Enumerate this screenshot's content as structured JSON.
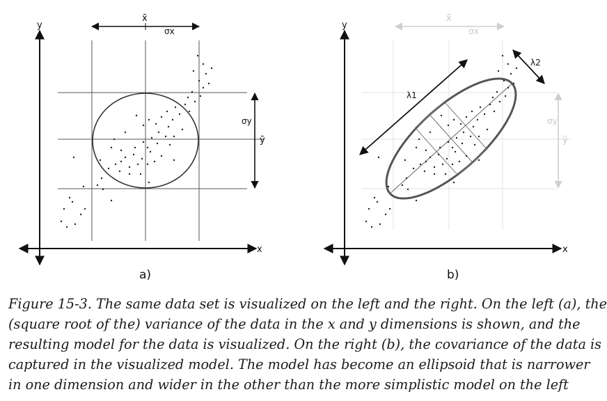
{
  "figure": {
    "panel_a": {
      "label": "a)",
      "x_axis": "x",
      "y_axis": "y",
      "x_mean": "x̄",
      "y_mean": "ȳ",
      "sigma_x": "σx",
      "sigma_y": "σy"
    },
    "panel_b": {
      "label": "b)",
      "x_axis": "x",
      "y_axis": "y",
      "x_mean": "x̄",
      "y_mean": "ȳ",
      "sigma_x": "σx",
      "sigma_y": "σy",
      "lambda1": "λ1",
      "lambda2": "λ2"
    }
  },
  "caption": {
    "lines": [
      "Figure 15-3. The same data set is visualized on the left and the right. On the left (a), the",
      "(square root of the) variance of the data in the x and y dimensions is shown, and the",
      "resulting model for the data is visualized. On the right (b), the covariance of the data is",
      "captured in the visualized model. The model has become an ellipsoid that is narrower",
      "in one dimension and wider in the other than the more simplistic model on the left"
    ]
  }
}
